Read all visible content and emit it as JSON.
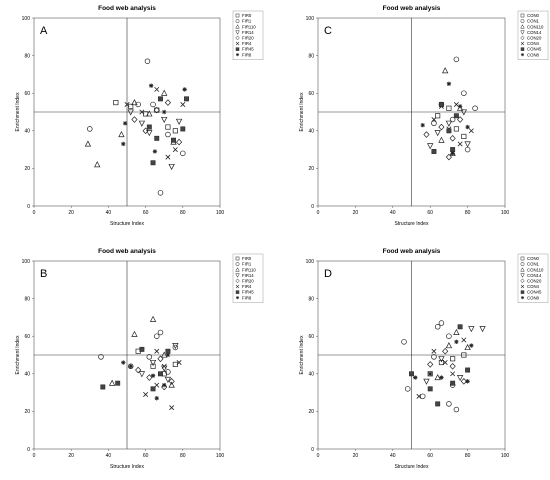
{
  "chart_data": [
    {
      "type": "scatter",
      "panel_label": "A",
      "title": "Food web analysis",
      "xlabel": "Structure Index",
      "ylabel": "Enrichment Index",
      "xlim": [
        0,
        100
      ],
      "ylim": [
        0,
        100
      ],
      "xticks": [
        0,
        20,
        40,
        60,
        80,
        100
      ],
      "yticks": [
        0,
        20,
        40,
        60,
        80,
        100
      ],
      "reference_lines": {
        "x": 50,
        "y": 50
      },
      "grid": false,
      "legend_position": "top-right",
      "series": [
        {
          "name": "FIR0",
          "marker": "square-open",
          "points": [
            [
              44,
              55
            ],
            [
              52,
              53
            ],
            [
              60,
              49
            ],
            [
              66,
              51
            ],
            [
              72,
              42
            ],
            [
              76,
              40
            ]
          ]
        },
        {
          "name": "FIR1",
          "marker": "circle-open",
          "points": [
            [
              30,
              41
            ],
            [
              56,
              54
            ],
            [
              61,
              77
            ],
            [
              64,
              54
            ],
            [
              68,
              7
            ],
            [
              72,
              38
            ],
            [
              80,
              28
            ]
          ]
        },
        {
          "name": "FIR110",
          "marker": "triangle-up-open",
          "points": [
            [
              29,
              33
            ],
            [
              34,
              22
            ],
            [
              47,
              38
            ],
            [
              54,
              55
            ],
            [
              62,
              49
            ],
            [
              70,
              60
            ],
            [
              75,
              34
            ]
          ]
        },
        {
          "name": "FIR14",
          "marker": "triangle-down-open",
          "points": [
            [
              52,
              50
            ],
            [
              58,
              44
            ],
            [
              62,
              39
            ],
            [
              70,
              46
            ],
            [
              74,
              21
            ],
            [
              78,
              45
            ]
          ]
        },
        {
          "name": "FIR20",
          "marker": "diamond-open",
          "points": [
            [
              54,
              46
            ],
            [
              60,
              40
            ],
            [
              66,
              51
            ],
            [
              72,
              55
            ],
            [
              78,
              34
            ]
          ]
        },
        {
          "name": "FIR4",
          "marker": "x",
          "points": [
            [
              50,
              54
            ],
            [
              58,
              50
            ],
            [
              66,
              62
            ],
            [
              72,
              26
            ],
            [
              76,
              30
            ],
            [
              80,
              54
            ]
          ]
        },
        {
          "name": "FIR45",
          "marker": "square-filled",
          "points": [
            [
              62,
              42
            ],
            [
              64,
              23
            ],
            [
              66,
              36
            ],
            [
              68,
              57
            ],
            [
              75,
              35
            ],
            [
              82,
              57
            ],
            [
              80,
              41
            ]
          ]
        },
        {
          "name": "FIR8",
          "marker": "star",
          "points": [
            [
              48,
              33
            ],
            [
              49,
              44
            ],
            [
              63,
              64
            ],
            [
              65,
              29
            ],
            [
              70,
              50
            ],
            [
              81,
              62
            ]
          ]
        }
      ]
    },
    {
      "type": "scatter",
      "panel_label": "C",
      "title": "Food web analysis",
      "xlabel": "Structure Index",
      "ylabel": "Enrichment Index",
      "xlim": [
        0,
        100
      ],
      "ylim": [
        0,
        100
      ],
      "xticks": [
        0,
        20,
        40,
        60,
        80,
        100
      ],
      "yticks": [
        0,
        20,
        40,
        60,
        80,
        100
      ],
      "reference_lines": {
        "x": 50,
        "y": 50
      },
      "grid": false,
      "legend_position": "top-right",
      "series": [
        {
          "name": "CON0",
          "marker": "square-open",
          "points": [
            [
              64,
              48
            ],
            [
              70,
              52
            ],
            [
              74,
              41
            ],
            [
              78,
              37
            ]
          ]
        },
        {
          "name": "CON1",
          "marker": "circle-open",
          "points": [
            [
              74,
              78
            ],
            [
              78,
              60
            ],
            [
              66,
              54
            ],
            [
              72,
              46
            ],
            [
              84,
              52
            ],
            [
              62,
              44
            ],
            [
              80,
              30
            ]
          ]
        },
        {
          "name": "CON110",
          "marker": "triangle-up-open",
          "points": [
            [
              68,
              72
            ],
            [
              66,
              35
            ],
            [
              72,
              28
            ],
            [
              76,
              52
            ]
          ]
        },
        {
          "name": "CON14",
          "marker": "triangle-down-open",
          "points": [
            [
              60,
              32
            ],
            [
              64,
              39
            ],
            [
              70,
              44
            ],
            [
              78,
              50
            ],
            [
              80,
              33
            ]
          ]
        },
        {
          "name": "CON20",
          "marker": "diamond-open",
          "points": [
            [
              58,
              38
            ],
            [
              66,
              42
            ],
            [
              72,
              36
            ],
            [
              76,
              46
            ],
            [
              70,
              26
            ]
          ]
        },
        {
          "name": "CON4",
          "marker": "x",
          "points": [
            [
              62,
              46
            ],
            [
              66,
              53
            ],
            [
              70,
              41
            ],
            [
              74,
              54
            ],
            [
              76,
              33
            ],
            [
              82,
              40
            ]
          ]
        },
        {
          "name": "CON45",
          "marker": "square-filled",
          "points": [
            [
              62,
              29
            ],
            [
              70,
              40
            ],
            [
              66,
              54
            ],
            [
              74,
              48
            ],
            [
              72,
              30
            ]
          ]
        },
        {
          "name": "CON8",
          "marker": "star",
          "points": [
            [
              56,
              43
            ],
            [
              70,
              65
            ],
            [
              72,
              28
            ],
            [
              76,
              53
            ],
            [
              80,
              42
            ]
          ]
        }
      ]
    },
    {
      "type": "scatter",
      "panel_label": "B",
      "title": "Food web analysis",
      "xlabel": "Structure Index",
      "ylabel": "Enrichment Index",
      "xlim": [
        0,
        100
      ],
      "ylim": [
        0,
        100
      ],
      "xticks": [
        0,
        20,
        40,
        60,
        80,
        100
      ],
      "yticks": [
        0,
        20,
        40,
        60,
        80,
        100
      ],
      "reference_lines": {
        "x": 50,
        "y": 50
      },
      "grid": false,
      "legend_position": "top-right",
      "series": [
        {
          "name": "FIR0",
          "marker": "square-open",
          "points": [
            [
              56,
              52
            ],
            [
              64,
              44
            ],
            [
              70,
              40
            ],
            [
              76,
              45
            ]
          ]
        },
        {
          "name": "FIR1",
          "marker": "circle-open",
          "points": [
            [
              36,
              49
            ],
            [
              52,
              44
            ],
            [
              66,
              60
            ],
            [
              68,
              62
            ],
            [
              62,
              49
            ],
            [
              76,
              54
            ],
            [
              72,
              41
            ]
          ]
        },
        {
          "name": "FIR110",
          "marker": "triangle-up-open",
          "points": [
            [
              42,
              35
            ],
            [
              54,
              61
            ],
            [
              64,
              69
            ],
            [
              74,
              34
            ],
            [
              70,
              50
            ]
          ]
        },
        {
          "name": "FIR14",
          "marker": "triangle-down-open",
          "points": [
            [
              58,
              40
            ],
            [
              64,
              46
            ],
            [
              70,
              43
            ],
            [
              76,
              55
            ],
            [
              72,
              37
            ]
          ]
        },
        {
          "name": "FIR20",
          "marker": "diamond-open",
          "points": [
            [
              56,
              42
            ],
            [
              62,
              38
            ],
            [
              68,
              48
            ],
            [
              74,
              36
            ],
            [
              70,
              33
            ]
          ]
        },
        {
          "name": "FIR4",
          "marker": "x",
          "points": [
            [
              60,
              29
            ],
            [
              66,
              34
            ],
            [
              70,
              44
            ],
            [
              74,
              22
            ],
            [
              78,
              46
            ],
            [
              66,
              52
            ]
          ]
        },
        {
          "name": "FIR45",
          "marker": "square-filled",
          "points": [
            [
              37,
              33
            ],
            [
              45,
              35
            ],
            [
              58,
              53
            ],
            [
              64,
              32
            ],
            [
              68,
              40
            ],
            [
              72,
              52
            ]
          ]
        },
        {
          "name": "FIR8",
          "marker": "star",
          "points": [
            [
              48,
              46
            ],
            [
              52,
              44
            ],
            [
              64,
              39
            ],
            [
              66,
              27
            ],
            [
              70,
              34
            ],
            [
              72,
              50
            ]
          ]
        }
      ]
    },
    {
      "type": "scatter",
      "panel_label": "D",
      "title": "Food web analysis",
      "xlabel": "Structure Index",
      "ylabel": "Enrichment Index",
      "xlim": [
        0,
        100
      ],
      "ylim": [
        0,
        100
      ],
      "xticks": [
        0,
        20,
        40,
        60,
        80,
        100
      ],
      "yticks": [
        0,
        20,
        40,
        60,
        80,
        100
      ],
      "reference_lines": {
        "x": 50,
        "y": 50
      },
      "grid": false,
      "legend_position": "top-right",
      "series": [
        {
          "name": "CON0",
          "marker": "square-open",
          "points": [
            [
              60,
              40
            ],
            [
              66,
              46
            ],
            [
              72,
              48
            ],
            [
              78,
              50
            ]
          ]
        },
        {
          "name": "CON1",
          "marker": "circle-open",
          "points": [
            [
              46,
              57
            ],
            [
              48,
              32
            ],
            [
              56,
              28
            ],
            [
              62,
              49
            ],
            [
              64,
              65
            ],
            [
              66,
              67
            ],
            [
              70,
              60
            ],
            [
              72,
              34
            ],
            [
              74,
              21
            ],
            [
              70,
              24
            ]
          ]
        },
        {
          "name": "CON110",
          "marker": "triangle-up-open",
          "points": [
            [
              64,
              38
            ],
            [
              70,
              55
            ],
            [
              74,
              62
            ],
            [
              80,
              54
            ]
          ]
        },
        {
          "name": "CON14",
          "marker": "triangle-down-open",
          "points": [
            [
              58,
              36
            ],
            [
              66,
              48
            ],
            [
              76,
              38
            ],
            [
              82,
              64
            ],
            [
              88,
              64
            ]
          ]
        },
        {
          "name": "CON20",
          "marker": "diamond-open",
          "points": [
            [
              60,
              45
            ],
            [
              68,
              52
            ],
            [
              72,
              44
            ],
            [
              78,
              36
            ]
          ]
        },
        {
          "name": "CON4",
          "marker": "x",
          "points": [
            [
              54,
              28
            ],
            [
              62,
              52
            ],
            [
              68,
              46
            ],
            [
              72,
              40
            ],
            [
              78,
              58
            ]
          ]
        },
        {
          "name": "CON45",
          "marker": "square-filled",
          "points": [
            [
              50,
              40
            ],
            [
              60,
              32
            ],
            [
              64,
              24
            ],
            [
              72,
              35
            ],
            [
              76,
              65
            ],
            [
              80,
              42
            ]
          ]
        },
        {
          "name": "CON8",
          "marker": "star",
          "points": [
            [
              52,
              38
            ],
            [
              60,
              40
            ],
            [
              66,
              38
            ],
            [
              74,
              57
            ],
            [
              80,
              36
            ],
            [
              82,
              55
            ]
          ]
        }
      ]
    }
  ]
}
